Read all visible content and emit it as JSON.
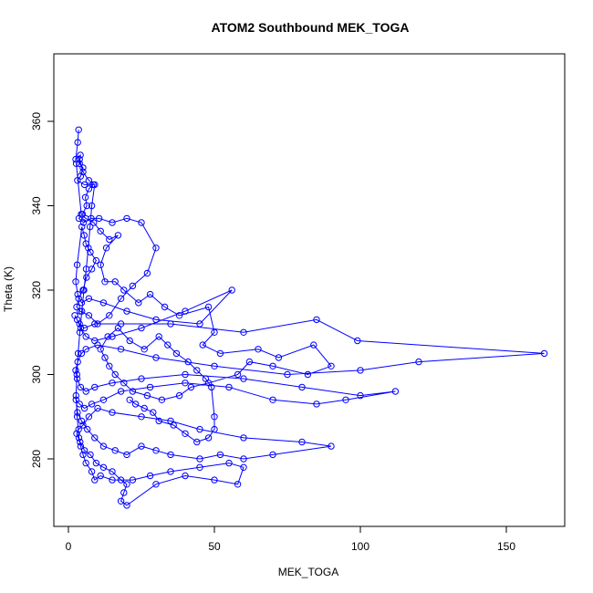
{
  "chart_data": {
    "type": "scatter",
    "title": "ATOM2 Southbound MEK_TOGA",
    "xlabel": "MEK_TOGA",
    "ylabel": "Theta (K)",
    "xlim": [
      -5,
      170
    ],
    "ylim": [
      264,
      376
    ],
    "x_ticks": [
      0,
      50,
      100,
      150
    ],
    "x_tick_labels": [
      "0",
      "50",
      "100",
      "150"
    ],
    "y_ticks": [
      280,
      300,
      320,
      340,
      360
    ],
    "y_tick_labels": [
      "280",
      "300",
      "320",
      "340",
      "360"
    ],
    "grid": false,
    "series": [
      {
        "style": "lines+points",
        "color": "#0000ff",
        "points": [
          [
            3.5,
            358
          ],
          [
            3.2,
            355
          ],
          [
            2.5,
            351
          ],
          [
            4.1,
            352
          ],
          [
            3.8,
            350
          ],
          [
            5.0,
            349
          ],
          [
            4.2,
            347
          ],
          [
            3.1,
            346
          ],
          [
            5.5,
            345
          ],
          [
            8.5,
            345
          ],
          [
            7.0,
            344
          ],
          [
            5.8,
            342
          ],
          [
            6.3,
            340
          ],
          [
            4.8,
            338
          ],
          [
            3.6,
            337
          ],
          [
            5.2,
            336
          ],
          [
            7.8,
            337
          ],
          [
            10.5,
            337
          ],
          [
            15.0,
            336
          ],
          [
            20.0,
            337
          ],
          [
            25.0,
            336
          ],
          [
            30.0,
            330
          ],
          [
            27.0,
            324
          ],
          [
            22.0,
            321
          ],
          [
            18.0,
            318
          ],
          [
            14.0,
            314
          ],
          [
            10.0,
            312
          ],
          [
            7.0,
            314
          ],
          [
            4.0,
            315
          ],
          [
            2.8,
            316
          ],
          [
            3.5,
            318
          ],
          [
            5.0,
            320
          ],
          [
            6.2,
            323
          ],
          [
            8.0,
            325
          ],
          [
            9.5,
            327
          ],
          [
            7.5,
            329
          ],
          [
            6.0,
            331
          ],
          [
            5.4,
            333
          ],
          [
            4.6,
            335
          ],
          [
            3.0,
            326
          ],
          [
            2.5,
            322
          ],
          [
            3.2,
            319
          ],
          [
            4.5,
            317
          ],
          [
            7.0,
            318
          ],
          [
            12.0,
            317
          ],
          [
            20.0,
            315
          ],
          [
            30.0,
            313
          ],
          [
            45.0,
            312
          ],
          [
            56.0,
            320
          ],
          [
            40.0,
            315
          ],
          [
            25.0,
            311
          ],
          [
            15.0,
            309
          ],
          [
            9.0,
            308
          ],
          [
            6.0,
            309
          ],
          [
            4.2,
            311
          ],
          [
            3.0,
            313
          ],
          [
            2.2,
            314
          ],
          [
            3.8,
            312
          ],
          [
            5.5,
            311
          ],
          [
            9.0,
            312
          ],
          [
            18.0,
            312
          ],
          [
            35.0,
            312
          ],
          [
            60.0,
            310
          ],
          [
            85.0,
            313
          ],
          [
            99.0,
            308
          ],
          [
            163.0,
            305
          ],
          [
            120.0,
            303
          ],
          [
            100.0,
            301
          ],
          [
            75.0,
            300
          ],
          [
            50.0,
            302
          ],
          [
            30.0,
            304
          ],
          [
            18.0,
            306
          ],
          [
            10.0,
            307
          ],
          [
            6.0,
            306
          ],
          [
            4.5,
            305
          ],
          [
            3.2,
            303
          ],
          [
            2.5,
            301
          ],
          [
            3.0,
            299
          ],
          [
            4.2,
            297
          ],
          [
            6.0,
            296
          ],
          [
            9.0,
            297
          ],
          [
            15.0,
            298
          ],
          [
            25.0,
            299
          ],
          [
            40.0,
            300
          ],
          [
            60.0,
            299
          ],
          [
            80.0,
            297
          ],
          [
            100.0,
            295
          ],
          [
            112.0,
            296
          ],
          [
            95.0,
            294
          ],
          [
            85.0,
            293
          ],
          [
            70.0,
            294
          ],
          [
            55.0,
            297
          ],
          [
            40.0,
            298
          ],
          [
            28.0,
            297
          ],
          [
            18.0,
            296
          ],
          [
            12.0,
            294
          ],
          [
            8.0,
            293
          ],
          [
            5.5,
            292
          ],
          [
            3.8,
            293
          ],
          [
            2.6,
            294
          ],
          [
            3.1,
            291
          ],
          [
            4.5,
            289
          ],
          [
            6.5,
            287
          ],
          [
            9.0,
            285
          ],
          [
            12.0,
            283
          ],
          [
            16.0,
            282
          ],
          [
            20.0,
            281
          ],
          [
            25.0,
            283
          ],
          [
            30.0,
            282
          ],
          [
            35.0,
            281
          ],
          [
            45.0,
            280
          ],
          [
            52.0,
            281
          ],
          [
            60.0,
            280
          ],
          [
            70.0,
            281
          ],
          [
            90.0,
            283
          ],
          [
            80.0,
            284
          ],
          [
            60.0,
            285
          ],
          [
            45.0,
            287
          ],
          [
            35.0,
            289
          ],
          [
            25.0,
            290
          ],
          [
            15.0,
            291
          ],
          [
            10.0,
            292
          ],
          [
            7.0,
            290
          ],
          [
            5.0,
            288
          ],
          [
            3.5,
            287
          ],
          [
            2.8,
            286
          ],
          [
            4.0,
            284
          ],
          [
            5.5,
            282
          ],
          [
            7.5,
            281
          ],
          [
            9.5,
            279
          ],
          [
            12.0,
            278
          ],
          [
            15.0,
            277
          ],
          [
            18.0,
            275
          ],
          [
            20.0,
            274
          ],
          [
            19.0,
            272
          ],
          [
            18.0,
            270
          ],
          [
            20.0,
            269
          ],
          [
            30.0,
            274
          ],
          [
            40.0,
            276
          ],
          [
            50.0,
            275
          ],
          [
            58.0,
            274
          ],
          [
            60.0,
            278
          ],
          [
            55.0,
            279
          ],
          [
            45.0,
            278
          ],
          [
            35.0,
            277
          ],
          [
            28.0,
            276
          ],
          [
            22.0,
            275
          ],
          [
            15.0,
            275
          ],
          [
            11.0,
            276
          ],
          [
            9.0,
            275
          ],
          [
            8.0,
            277
          ],
          [
            6.0,
            279
          ],
          [
            5.0,
            281
          ],
          [
            4.2,
            283
          ],
          [
            3.6,
            285
          ],
          [
            3.0,
            290
          ],
          [
            2.6,
            295
          ],
          [
            2.9,
            300
          ],
          [
            3.3,
            305
          ],
          [
            3.9,
            310
          ],
          [
            4.6,
            315
          ],
          [
            5.3,
            320
          ],
          [
            6.1,
            325
          ],
          [
            6.8,
            330
          ],
          [
            7.4,
            335
          ],
          [
            8.0,
            340
          ],
          [
            9.0,
            345
          ],
          [
            7.0,
            346
          ],
          [
            5.0,
            348
          ],
          [
            3.8,
            351
          ],
          [
            2.7,
            350
          ],
          [
            4.4,
            338
          ],
          [
            5.9,
            337
          ],
          [
            8.7,
            336
          ],
          [
            11.0,
            334
          ],
          [
            14.0,
            332
          ],
          [
            17.0,
            333
          ],
          [
            13.0,
            330
          ],
          [
            11.0,
            326
          ],
          [
            12.5,
            322
          ],
          [
            16.0,
            322
          ],
          [
            19.0,
            320
          ],
          [
            24.0,
            317
          ],
          [
            28.0,
            319
          ],
          [
            33.0,
            316
          ],
          [
            38.0,
            314
          ],
          [
            48.0,
            316
          ],
          [
            50.0,
            310
          ],
          [
            46.0,
            307
          ],
          [
            52.0,
            305
          ],
          [
            65.0,
            306
          ],
          [
            72.0,
            304
          ],
          [
            84.0,
            307
          ],
          [
            90.0,
            302
          ],
          [
            82.0,
            300
          ],
          [
            70.0,
            302
          ],
          [
            62.0,
            303
          ],
          [
            58.0,
            300
          ],
          [
            48.0,
            298
          ],
          [
            42.0,
            297
          ],
          [
            38.0,
            295
          ],
          [
            32.0,
            294
          ],
          [
            27.0,
            295
          ],
          [
            22.0,
            296
          ],
          [
            19.0,
            298
          ],
          [
            16.0,
            300
          ],
          [
            14.0,
            302
          ],
          [
            12.5,
            304
          ],
          [
            11.0,
            306
          ],
          [
            13.5,
            309
          ],
          [
            17.0,
            311
          ],
          [
            21.0,
            308
          ],
          [
            26.0,
            306
          ],
          [
            31.0,
            309
          ],
          [
            34.0,
            307
          ],
          [
            37.0,
            305
          ],
          [
            41.0,
            303
          ],
          [
            44.0,
            301
          ],
          [
            47.0,
            299
          ],
          [
            49.0,
            297
          ],
          [
            50.0,
            290
          ],
          [
            50.0,
            287
          ],
          [
            48.0,
            285
          ],
          [
            44.0,
            284
          ],
          [
            40.0,
            286
          ],
          [
            36.0,
            288
          ],
          [
            31.0,
            289
          ],
          [
            29.0,
            291
          ],
          [
            26.0,
            292
          ],
          [
            23.0,
            293
          ],
          [
            21.0,
            294
          ]
        ]
      }
    ]
  }
}
